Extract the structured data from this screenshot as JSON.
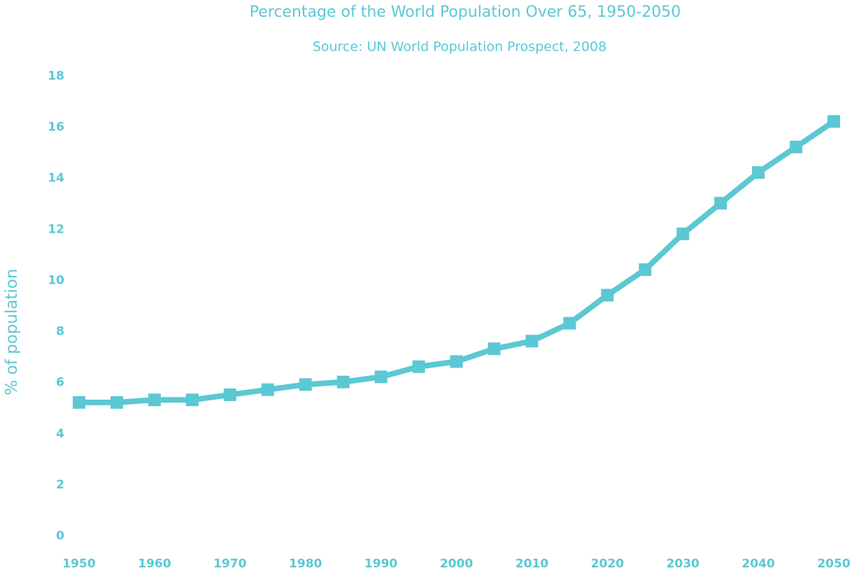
{
  "chart_data": {
    "type": "line",
    "title": "Percentage of the World Population Over 65, 1950-2050",
    "subtitle": "Source: UN World Population Prospect, 2008",
    "xlabel": "",
    "ylabel": "% of population",
    "ylim": [
      0,
      18
    ],
    "xlim": [
      1950,
      2050
    ],
    "yticks": [
      "0",
      "2",
      "4",
      "6",
      "8",
      "10",
      "12",
      "14",
      "16",
      "18"
    ],
    "xticks": [
      "1950",
      "1960",
      "1970",
      "1980",
      "1990",
      "2000",
      "2010",
      "2020",
      "2030",
      "2040",
      "2050"
    ],
    "grid": false,
    "legend": "none",
    "color": "#5bc8d4",
    "series": [
      {
        "x": [
          1950,
          1955,
          1960,
          1965,
          1970,
          1975,
          1980,
          1985,
          1990,
          1995,
          2000,
          2005,
          2010,
          2015,
          2020,
          2025,
          2030,
          2035,
          2040,
          2045,
          2050
        ],
        "values": [
          5.2,
          5.2,
          5.3,
          5.3,
          5.5,
          5.7,
          5.9,
          6.0,
          6.2,
          6.6,
          6.8,
          7.3,
          7.6,
          8.3,
          9.4,
          10.4,
          11.8,
          13.0,
          14.2,
          15.2,
          16.2
        ]
      }
    ]
  }
}
